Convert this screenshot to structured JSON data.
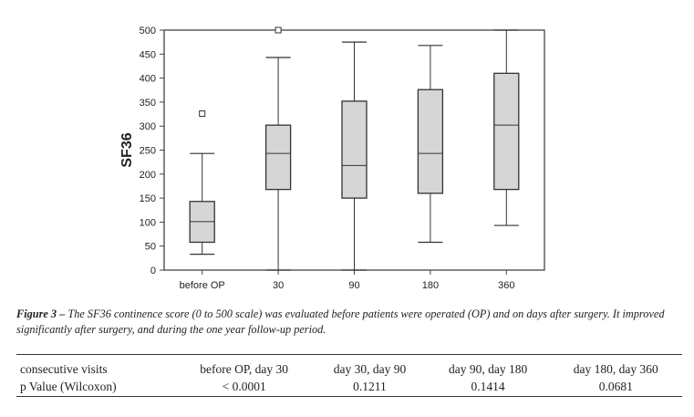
{
  "chart_data": {
    "type": "boxplot",
    "ylabel": "SF36",
    "ylim": [
      0,
      500
    ],
    "yticks": [
      "0",
      "50",
      "100",
      "150",
      "200",
      "250",
      "300",
      "350",
      "400",
      "450",
      "500"
    ],
    "categories": [
      "before OP",
      "30",
      "90",
      "180",
      "360"
    ],
    "boxes": [
      {
        "min": 33,
        "q1": 58,
        "median": 101,
        "q3": 143,
        "max": 243,
        "outliers": [
          326
        ]
      },
      {
        "min": 0,
        "q1": 168,
        "median": 243,
        "q3": 302,
        "max": 443,
        "outliers": [
          500
        ]
      },
      {
        "min": 0,
        "q1": 150,
        "median": 218,
        "q3": 352,
        "max": 475,
        "outliers": []
      },
      {
        "min": 58,
        "q1": 160,
        "median": 243,
        "q3": 376,
        "max": 468,
        "outliers": []
      },
      {
        "min": 93,
        "q1": 168,
        "median": 302,
        "q3": 410,
        "max": 500,
        "outliers": []
      }
    ]
  },
  "caption": {
    "label": "Figure 3 – ",
    "text": "The SF36 continence score (0 to 500 scale) was evaluated before patients were operated (OP) and on days after surgery. It improved significantly after surgery, and during the one year follow-up period."
  },
  "table": {
    "row_labels": [
      "consecutive visits",
      "p Value (Wilcoxon)"
    ],
    "headers": [
      "before OP, day 30",
      "day 30, day 90",
      "day 90, day 180",
      "day 180, day 360"
    ],
    "values": [
      "< 0.0001",
      "0.1211",
      "0.1414",
      "0.0681"
    ]
  }
}
